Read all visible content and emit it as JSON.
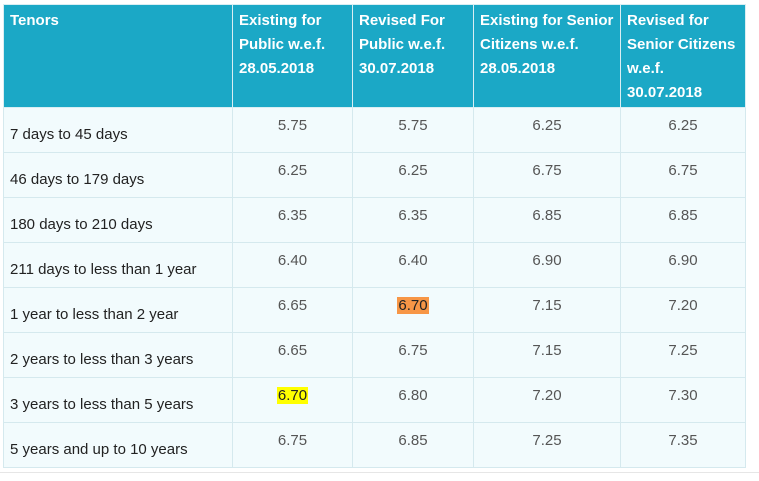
{
  "headers": [
    "Tenors",
    "Existing for Public w.e.f. 28.05.2018",
    "Revised For Public w.e.f. 30.07.2018",
    "Existing for Senior Citizens w.e.f. 28.05.2018",
    "Revised for Senior Citizens w.e.f. 30.07.2018"
  ],
  "rows": [
    {
      "tenor": "7 days to 45 days",
      "values": [
        "5.75",
        "5.75",
        "6.25",
        "6.25"
      ]
    },
    {
      "tenor": "46 days to 179 days",
      "values": [
        "6.25",
        "6.25",
        "6.75",
        "6.75"
      ]
    },
    {
      "tenor": "180 days to 210 days",
      "values": [
        "6.35",
        "6.35",
        "6.85",
        "6.85"
      ]
    },
    {
      "tenor": "211 days to less than 1 year",
      "values": [
        "6.40",
        "6.40",
        "6.90",
        "6.90"
      ]
    },
    {
      "tenor": "1 year to less than 2 year",
      "values": [
        "6.65",
        "6.70",
        "7.15",
        "7.20"
      ]
    },
    {
      "tenor": "2 years to less than 3 years",
      "values": [
        "6.65",
        "6.75",
        "7.15",
        "7.25"
      ]
    },
    {
      "tenor": "3 years to less than 5 years",
      "values": [
        "6.70",
        "6.80",
        "7.20",
        "7.30"
      ]
    },
    {
      "tenor": "5 years and up to 10 years",
      "values": [
        "6.75",
        "6.85",
        "7.25",
        "7.35"
      ]
    }
  ],
  "highlights": [
    {
      "row": 4,
      "col": 1,
      "color": "#f79646"
    },
    {
      "row": 6,
      "col": 0,
      "color": "#ffff00"
    }
  ],
  "colors": {
    "header_bg": "#1ba8c6",
    "cell_bg": "#f2fbfd"
  }
}
